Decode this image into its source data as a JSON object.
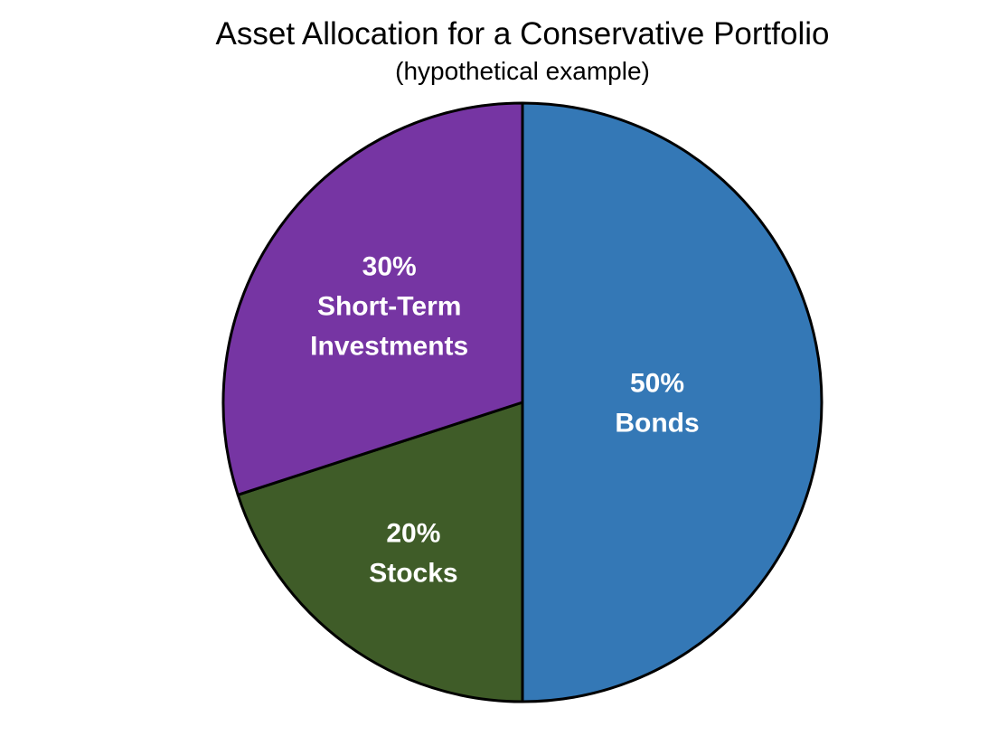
{
  "chart_data": {
    "type": "pie",
    "title": "Asset Allocation for a Conservative Portfolio",
    "subtitle": "(hypothetical example)",
    "unit": "percent",
    "start_angle_deg": 90,
    "direction": "clockwise",
    "legend": "none",
    "labels_position": "inside",
    "background_color": "#ffffff",
    "title_color": "#000000",
    "stroke_color": "#000000",
    "label_color": "#ffffff",
    "slices": [
      {
        "name": "Bonds",
        "value": 50,
        "color": "#3478B6",
        "label_lines": [
          "50%",
          "Bonds"
        ],
        "label_r_frac": 0.45
      },
      {
        "name": "Stocks",
        "value": 20,
        "color": "#3F5C28",
        "label_lines": [
          "20%",
          "Stocks"
        ],
        "label_r_frac": 0.62
      },
      {
        "name": "Short-Term Investments",
        "value": 30,
        "color": "#7635A3",
        "label_lines": [
          "30%",
          "Short-Term",
          "Investments"
        ],
        "label_r_frac": 0.55
      }
    ]
  }
}
